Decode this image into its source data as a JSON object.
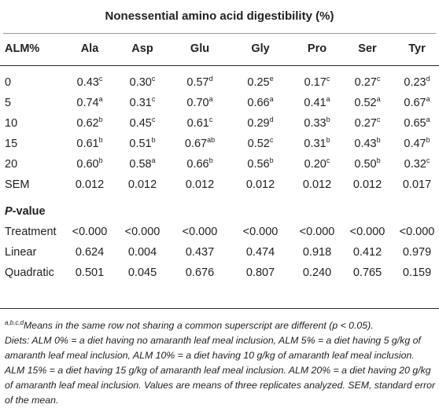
{
  "title": "Nonessential amino acid digestibility (%)",
  "header": [
    "ALM%",
    "Ala",
    "Asp",
    "Glu",
    "Gly",
    "Pro",
    "Ser",
    "Tyr"
  ],
  "rows": [
    {
      "label": "0",
      "cells": [
        [
          "0.43",
          "c"
        ],
        [
          "0.30",
          "c"
        ],
        [
          "0.57",
          "d"
        ],
        [
          "0.25",
          "e"
        ],
        [
          "0.17",
          "c"
        ],
        [
          "0.27",
          "c"
        ],
        [
          "0.23",
          "d"
        ]
      ]
    },
    {
      "label": "5",
      "cells": [
        [
          "0.74",
          "a"
        ],
        [
          "0.31",
          "c"
        ],
        [
          "0.70",
          "a"
        ],
        [
          "0.66",
          "a"
        ],
        [
          "0.41",
          "a"
        ],
        [
          "0.52",
          "a"
        ],
        [
          "0.67",
          "a"
        ]
      ]
    },
    {
      "label": "10",
      "cells": [
        [
          "0.62",
          "b"
        ],
        [
          "0.45",
          "c"
        ],
        [
          "0.61",
          "c"
        ],
        [
          "0.29",
          "d"
        ],
        [
          "0.33",
          "b"
        ],
        [
          "0.27",
          "c"
        ],
        [
          "0.65",
          "a"
        ]
      ]
    },
    {
      "label": "15",
      "cells": [
        [
          "0.61",
          "b"
        ],
        [
          "0.51",
          "b"
        ],
        [
          "0.67",
          "ab"
        ],
        [
          "0.52",
          "c"
        ],
        [
          "0.31",
          "b"
        ],
        [
          "0.43",
          "b"
        ],
        [
          "0.47",
          "b"
        ]
      ]
    },
    {
      "label": "20",
      "cells": [
        [
          "0.60",
          "b"
        ],
        [
          "0.58",
          "a"
        ],
        [
          "0.66",
          "b"
        ],
        [
          "0.56",
          "b"
        ],
        [
          "0.20",
          "c"
        ],
        [
          "0.50",
          "b"
        ],
        [
          "0.32",
          "c"
        ]
      ]
    },
    {
      "label": "SEM",
      "cells": [
        [
          "0.012",
          ""
        ],
        [
          "0.012",
          ""
        ],
        [
          "0.012",
          ""
        ],
        [
          "0.012",
          ""
        ],
        [
          "0.012",
          ""
        ],
        [
          "0.012",
          ""
        ],
        [
          "0.017",
          ""
        ]
      ]
    }
  ],
  "pvalue_header_p": "P",
  "pvalue_header_rest": "-value",
  "prows": [
    {
      "label": "Treatment",
      "cells": [
        "<0.000",
        "<0.000",
        "<0.000",
        "<0.000",
        "<0.000",
        "<0.000",
        "<0.000"
      ]
    },
    {
      "label": "Linear",
      "cells": [
        "0.624",
        "0.004",
        "0.437",
        "0.474",
        "0.918",
        "0.412",
        "0.979"
      ]
    },
    {
      "label": "Quadratic",
      "cells": [
        "0.501",
        "0.045",
        "0.676",
        "0.807",
        "0.240",
        "0.765",
        "0.159"
      ]
    }
  ],
  "footnote_sup": "a,b,c,d",
  "footnote_1": "Means in the same row not sharing a common superscript are different (p < 0.05).",
  "footnote_2": "Diets: ALM 0% = a diet having no amaranth leaf meal inclusion, ALM 5% = a diet having 5 g/kg of amaranth leaf meal inclusion, ALM 10% = a diet having 10 g/kg of amaranth leaf meal inclusion. ALM 15% = a diet having 15 g/kg of amaranth leaf meal inclusion. ALM 20% = a diet having 20 g/kg of amaranth leaf meal inclusion. Values are means of three replicates analyzed. SEM, standard error of the mean."
}
